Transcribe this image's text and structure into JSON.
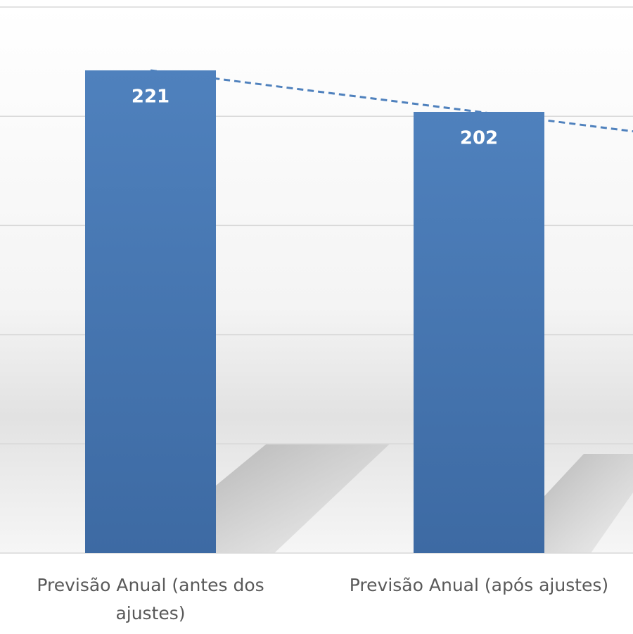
{
  "chart_data": {
    "type": "bar",
    "categories": [
      "Previsão Anual (antes dos ajustes)",
      "Previsão Anual (após ajustes)"
    ],
    "values": [
      221,
      202
    ],
    "color": "#4f81bd",
    "ylim": [
      0,
      250
    ],
    "yticks": [
      0,
      50,
      100,
      150,
      200,
      250
    ],
    "grid": true,
    "trendline": true,
    "data_labels": true
  }
}
